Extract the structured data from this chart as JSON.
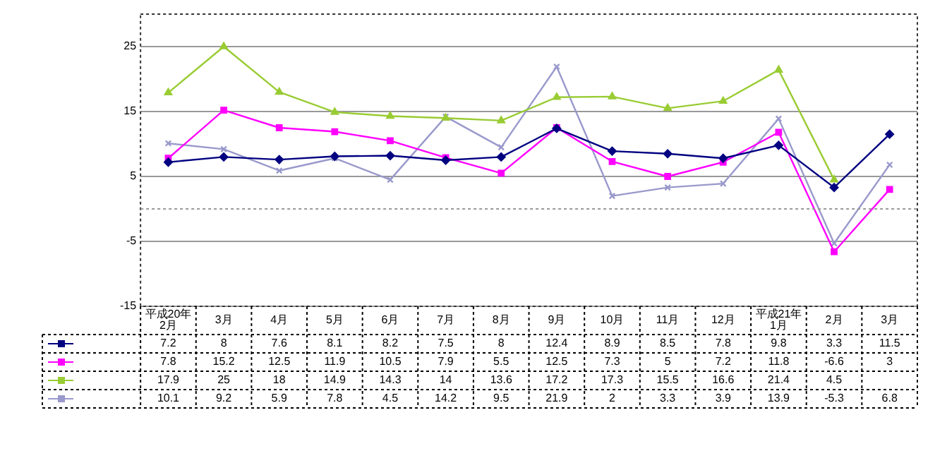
{
  "chart_data": {
    "type": "line",
    "categories": [
      "平成20年 2月",
      "3月",
      "4月",
      "5月",
      "6月",
      "7月",
      "8月",
      "9月",
      "10月",
      "11月",
      "12月",
      "平成21年 1月",
      "2月",
      "3月"
    ],
    "series": [
      {
        "color": "#000080",
        "marker": "diamond",
        "values": [
          7.2,
          8.0,
          7.6,
          8.1,
          8.2,
          7.5,
          8.0,
          12.4,
          8.9,
          8.5,
          7.8,
          9.8,
          3.3,
          11.5
        ]
      },
      {
        "color": "#ff00ff",
        "marker": "square",
        "values": [
          7.8,
          15.2,
          12.5,
          11.9,
          10.5,
          7.9,
          5.5,
          12.5,
          7.3,
          5.0,
          7.2,
          11.8,
          -6.6,
          3.0
        ]
      },
      {
        "color": "#99cc33",
        "marker": "triangle",
        "values": [
          17.9,
          25.0,
          18.0,
          14.9,
          14.3,
          14.0,
          13.6,
          17.2,
          17.3,
          15.5,
          16.6,
          21.4,
          4.5,
          null
        ]
      },
      {
        "color": "#9999cc",
        "marker": "cross",
        "values": [
          10.1,
          9.2,
          5.9,
          7.8,
          4.5,
          14.2,
          9.5,
          21.9,
          2.0,
          3.3,
          3.9,
          13.9,
          -5.3,
          6.8
        ]
      }
    ],
    "ylim": [
      -15,
      30
    ],
    "yticks": [
      -15,
      -5,
      5,
      15,
      25
    ],
    "ref_lines": [
      {
        "axis": "y",
        "value": 0
      }
    ],
    "grid": "y",
    "data_labels": true,
    "line_style": "solid"
  }
}
